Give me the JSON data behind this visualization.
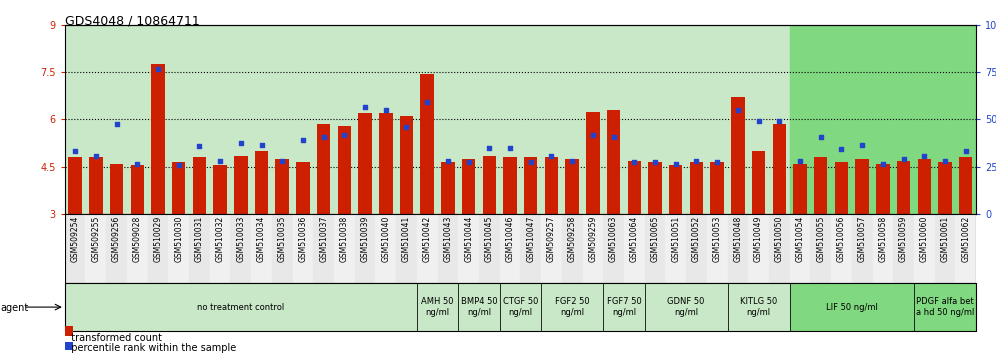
{
  "title": "GDS4048 / 10864711",
  "bar_labels": [
    "GSM509254",
    "GSM509255",
    "GSM509256",
    "GSM509028",
    "GSM510029",
    "GSM510030",
    "GSM510031",
    "GSM510032",
    "GSM510033",
    "GSM510034",
    "GSM510035",
    "GSM510036",
    "GSM510037",
    "GSM510038",
    "GSM510039",
    "GSM510040",
    "GSM510041",
    "GSM510042",
    "GSM510043",
    "GSM510044",
    "GSM510045",
    "GSM510046",
    "GSM510047",
    "GSM509257",
    "GSM509258",
    "GSM509259",
    "GSM510063",
    "GSM510064",
    "GSM510065",
    "GSM510051",
    "GSM510052",
    "GSM510053",
    "GSM510048",
    "GSM510049",
    "GSM510050",
    "GSM510054",
    "GSM510055",
    "GSM510056",
    "GSM510057",
    "GSM510058",
    "GSM510059",
    "GSM510060",
    "GSM510061",
    "GSM510062"
  ],
  "red_values": [
    4.8,
    4.8,
    4.6,
    4.55,
    7.75,
    4.65,
    4.8,
    4.55,
    4.85,
    5.0,
    4.75,
    4.65,
    5.85,
    5.8,
    6.2,
    6.2,
    6.1,
    7.45,
    4.65,
    4.75,
    4.85,
    4.8,
    4.8,
    4.8,
    4.75,
    6.25,
    6.3,
    4.7,
    4.65,
    4.55,
    4.65,
    4.65,
    6.7,
    5.0,
    5.85,
    4.6,
    4.8,
    4.65,
    4.75,
    4.6,
    4.7,
    4.75,
    4.65,
    4.8
  ],
  "blue_values": [
    5.0,
    4.85,
    5.85,
    4.6,
    7.6,
    4.55,
    5.15,
    4.7,
    5.25,
    5.2,
    4.7,
    5.35,
    5.45,
    5.5,
    6.4,
    6.3,
    5.75,
    6.55,
    4.7,
    4.65,
    5.1,
    5.1,
    4.65,
    4.85,
    4.7,
    5.5,
    5.45,
    4.65,
    4.65,
    4.6,
    4.7,
    4.65,
    6.3,
    5.95,
    5.95,
    4.7,
    5.45,
    5.05,
    5.2,
    4.6,
    4.75,
    4.85,
    4.7,
    5.0
  ],
  "agent_groups": [
    {
      "label": "no treatment control",
      "start": 0,
      "end": 16,
      "color": "#c8e8c8"
    },
    {
      "label": "AMH 50\nng/ml",
      "start": 17,
      "end": 18,
      "color": "#c8e8c8"
    },
    {
      "label": "BMP4 50\nng/ml",
      "start": 19,
      "end": 20,
      "color": "#c8e8c8"
    },
    {
      "label": "CTGF 50\nng/ml",
      "start": 21,
      "end": 22,
      "color": "#c8e8c8"
    },
    {
      "label": "FGF2 50\nng/ml",
      "start": 23,
      "end": 25,
      "color": "#c8e8c8"
    },
    {
      "label": "FGF7 50\nng/ml",
      "start": 26,
      "end": 27,
      "color": "#c8e8c8"
    },
    {
      "label": "GDNF 50\nng/ml",
      "start": 28,
      "end": 31,
      "color": "#c8e8c8"
    },
    {
      "label": "KITLG 50\nng/ml",
      "start": 32,
      "end": 34,
      "color": "#c8e8c8"
    },
    {
      "label": "LIF 50 ng/ml",
      "start": 35,
      "end": 40,
      "color": "#80d880"
    },
    {
      "label": "PDGF alfa bet\na hd 50 ng/ml",
      "start": 41,
      "end": 43,
      "color": "#80d880"
    }
  ],
  "ylim_left": [
    3,
    9
  ],
  "ylim_right": [
    0,
    100
  ],
  "yticks_left": [
    3,
    4.5,
    6,
    7.5,
    9
  ],
  "ytick_labels_left": [
    "3",
    "4.5",
    "6",
    "7.5",
    "9"
  ],
  "yticks_right": [
    0,
    25,
    50,
    75,
    100
  ],
  "ytick_labels_right": [
    "0",
    "25",
    "50",
    "75",
    "100%"
  ],
  "bar_color": "#cc2000",
  "dot_color": "#2244cc",
  "title_fontsize": 9,
  "tick_fontsize": 7,
  "xlabel_fontsize": 5.5,
  "agent_fontsize": 6,
  "legend_fontsize": 7
}
